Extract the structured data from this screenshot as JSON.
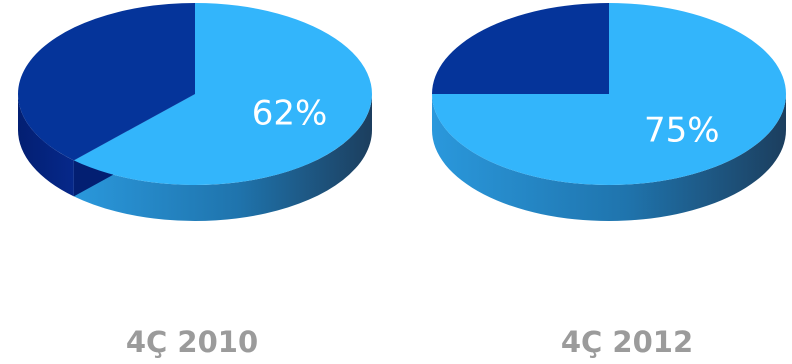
{
  "chart_data": [
    {
      "type": "pie",
      "category": "4Ç 2010",
      "slices": [
        {
          "value": 62,
          "label": "62%",
          "color": "#33b5fb"
        },
        {
          "value": 38,
          "label": "",
          "color": "#05349a"
        }
      ]
    },
    {
      "type": "pie",
      "category": "4Ç 2012",
      "slices": [
        {
          "value": 75,
          "label": "75%",
          "color": "#33b5fb"
        },
        {
          "value": 25,
          "label": "",
          "color": "#05349a"
        }
      ]
    }
  ],
  "colors": {
    "light_top": "#33b5fb",
    "light_side_start": "#2a98dc",
    "light_side_end": "#1c3e5e",
    "dark_top": "#05349a",
    "dark_side": "#031f72",
    "caption": "#9b9b9b"
  }
}
